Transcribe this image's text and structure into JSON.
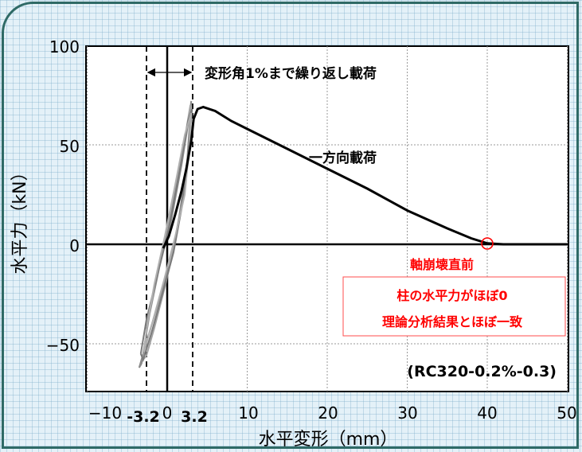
{
  "chart_data": {
    "type": "line",
    "xlabel": "水平変形（mm）",
    "ylabel": "水平力（kN）",
    "xlim": [
      -10,
      50
    ],
    "ylim": [
      -75,
      100
    ],
    "x_ticks": [
      "−10",
      "0",
      "10",
      "20",
      "30",
      "40",
      "50"
    ],
    "x_ticks_bold": [
      "-3.2",
      "3.2"
    ],
    "y_ticks": [
      "100",
      "50",
      "0",
      "−50"
    ],
    "grid": true,
    "series": [
      {
        "name": "一方向載荷",
        "style": "black-thick",
        "x": [
          -0.5,
          0.2,
          1.0,
          1.8,
          2.4,
          3.0,
          3.3,
          3.8,
          4.5,
          6.0,
          8.0,
          10.0,
          15.0,
          20.0,
          25.0,
          30.0,
          35.0,
          38.0,
          40.0,
          42.0,
          50.0
        ],
        "y": [
          -2,
          4,
          15,
          27,
          38,
          52,
          63,
          68,
          69,
          67,
          62,
          58,
          48,
          38,
          28,
          17,
          8,
          3,
          0.5,
          0,
          0
        ]
      },
      {
        "name": "",
        "style": "gray-cyclic",
        "loops": [
          {
            "x": [
              -3.2,
              -3.5,
              -2.5,
              -1.0,
              0.5,
              1.5,
              2.5,
              3.0,
              2.8,
              1.8,
              0.5,
              -1.0,
              -2.2,
              -3.2
            ],
            "y": [
              -60,
              -62,
              -48,
              -28,
              -8,
              14,
              42,
              72,
              65,
              40,
              12,
              -12,
              -35,
              -60
            ]
          },
          {
            "x": [
              -3.0,
              -2.6,
              -1.6,
              -0.2,
              1.0,
              2.0,
              2.7,
              2.9,
              2.4,
              1.3,
              0.0,
              -1.4,
              -2.5,
              -3.0
            ],
            "y": [
              -58,
              -56,
              -42,
              -20,
              2,
              22,
              48,
              70,
              58,
              33,
              6,
              -18,
              -40,
              -58
            ]
          },
          {
            "x": [
              -3.3,
              -3.0,
              -2.0,
              -0.6,
              0.8,
              1.8,
              2.6,
              3.1,
              2.6,
              1.6,
              0.2,
              -1.2,
              -2.6,
              -3.3
            ],
            "y": [
              -55,
              -58,
              -45,
              -25,
              -4,
              18,
              45,
              68,
              62,
              38,
              8,
              -15,
              -38,
              -55
            ]
          },
          {
            "x": [
              -2.8,
              -2.9,
              -1.9,
              -0.4,
              1.0,
              2.2,
              2.8,
              3.0,
              2.2,
              1.0,
              -0.3,
              -1.6,
              -2.4,
              -2.8
            ],
            "y": [
              -50,
              -54,
              -40,
              -18,
              4,
              25,
              50,
              66,
              55,
              30,
              4,
              -20,
              -38,
              -50
            ]
          }
        ]
      }
    ],
    "markers": {
      "x": [
        -3.2,
        3.2
      ]
    }
  },
  "annotations": {
    "range_label": "変形角1%まで繰り返し載荷",
    "monotonic_label": "一方向載荷",
    "collapse_label": "軸崩壊直前",
    "box_line1": "柱の水平力がほぼ0",
    "box_line2": "理論分析結果とほぼ一致",
    "specimen": "(RC320-0.2%-0.3)",
    "marker_color": "#ff0000"
  }
}
